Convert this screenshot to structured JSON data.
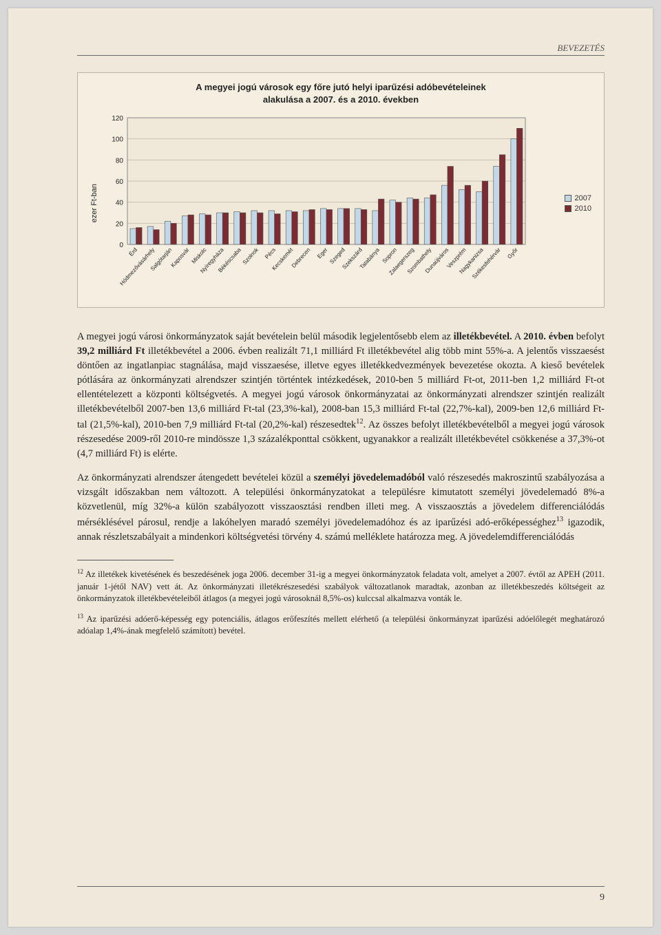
{
  "header": {
    "section": "BEVEZETÉS"
  },
  "chart": {
    "title_line1": "A megyei jogú városok egy főre jutó helyi iparűzési adóbevételeinek",
    "title_line2": "alakulása a 2007. és a 2010. években",
    "ylabel": "ezer Ft-ban",
    "ylim": [
      0,
      120
    ],
    "ytick_step": 20,
    "yticks": [
      0,
      20,
      40,
      60,
      80,
      100,
      120
    ],
    "plot_bg": "#f0e9da",
    "grid_color": "#c8c0b0",
    "border_color": "#888",
    "legend": [
      {
        "label": "2007",
        "color": "#c2d7e8"
      },
      {
        "label": "2010",
        "color": "#7a2c32"
      }
    ],
    "series_colors": {
      "s2007": "#c2d7e8",
      "s2010": "#7a2c32"
    },
    "bar_border": "#555",
    "categories": [
      "Érd",
      "Hódmezővásárhely",
      "Salgótarján",
      "Kaposvár",
      "Miskolc",
      "Nyíregyháza",
      "Békéscsaba",
      "Szolnok",
      "Pécs",
      "Kecskemét",
      "Debrecen",
      "Eger",
      "Szeged",
      "Szekszárd",
      "Tatabánya",
      "Sopron",
      "Zalaegerszeg",
      "Szombathely",
      "Dunaújváros",
      "Veszprém",
      "Nagykanizsa",
      "Székesfehérvár",
      "Győr"
    ],
    "values_2007": [
      15,
      17,
      22,
      27,
      29,
      30,
      31,
      32,
      32,
      32,
      32,
      34,
      34,
      34,
      32,
      42,
      44,
      44,
      56,
      52,
      50,
      74,
      100
    ],
    "values_2010": [
      16,
      14,
      20,
      28,
      28,
      30,
      30,
      30,
      29,
      31,
      33,
      33,
      34,
      33,
      43,
      40,
      43,
      47,
      74,
      56,
      60,
      85,
      110
    ]
  },
  "paragraphs": {
    "p1": "A megyei jogú városi önkormányzatok saját bevételein belül második legjelentősebb elem az ",
    "p1_bold1": "illetékbevétel.",
    "p1_mid": " A ",
    "p1_bold2": "2010. évben",
    "p1_mid2": " befolyt ",
    "p1_bold3": "39,2 milliárd Ft",
    "p1_rest": " illetékbevétel a 2006. évben realizált 71,1 milliárd Ft illetékbevétel alig több mint 55%-a. A jelentős visszaesést döntően az ingatlanpiac stagnálása, majd visszaesése, illetve egyes illetékkedvezmények bevezetése okozta. A kieső bevételek pótlására az önkormányzati alrendszer szintjén történtek intézkedések, 2010-ben 5 milliárd Ft-ot, 2011-ben 1,2 milliárd Ft-ot ellentételezett a központi költségvetés. A megyei jogú városok önkormányzatai az önkormányzati alrendszer szintjén realizált illetékbevételből 2007-ben 13,6 milliárd Ft-tal (23,3%-kal), 2008-ban 15,3 milliárd Ft-tal (22,7%-kal), 2009-ben 12,6 milliárd Ft-tal (21,5%-kal), 2010-ben 7,9 milliárd Ft-tal (20,2%-kal) részesedtek",
    "p1_sup": "12",
    "p1_end": ". Az összes befolyt illetékbevételből a megyei jogú városok részesedése 2009-ről 2010-re mindössze 1,3 százalékponttal csökkent, ugyanakkor a realizált illetékbevétel csökkenése a 37,3%-ot (4,7 milliárd Ft) is elérte.",
    "p2a": "Az önkormányzati alrendszer átengedett bevételei közül a ",
    "p2_bold": "személyi jövedelemadóból",
    "p2b": " való részesedés makroszintű szabályozása a vizsgált időszakban nem változott. A települési önkormányzatokat a településre kimutatott személyi jövedelemadó 8%-a közvetlenül, míg 32%-a külön szabályozott visszaosztási rendben illeti meg. A visszaosztás a jövedelem differenciálódás mérséklésével párosul, rendje a lakóhelyen maradó személyi jövedelemadóhoz és az iparűzési adó-erőképességhez",
    "p2_sup": "13",
    "p2c": " igazodik, annak részletszabályait a mindenkori költségvetési törvény 4. számú melléklete határozza meg. A jövedelemdifferenciálódás"
  },
  "footnotes": {
    "f12_sup": "12",
    "f12": " Az illetékek kivetésének és beszedésének joga 2006. december 31-ig a megyei önkormányzatok feladata volt, amelyet a 2007. évtől az APEH (2011. január 1-jétől NAV) vett át. Az önkormányzati illetékrészesedési szabályok változatlanok maradtak, azonban az illetékbeszedés költségeit az önkormányzatok illetékbevételeiből átlagos (a megyei jogú városoknál 8,5%-os) kulccsal alkalmazva vonták le.",
    "f13_sup": "13",
    "f13": " Az iparűzési adóerő-képesség egy potenciális, átlagos erőfeszítés mellett elérhető (a települési önkormányzat iparűzési adóelőlegét meghatározó adóalap 1,4%-ának megfelelő számított) bevétel."
  },
  "page_number": "9"
}
